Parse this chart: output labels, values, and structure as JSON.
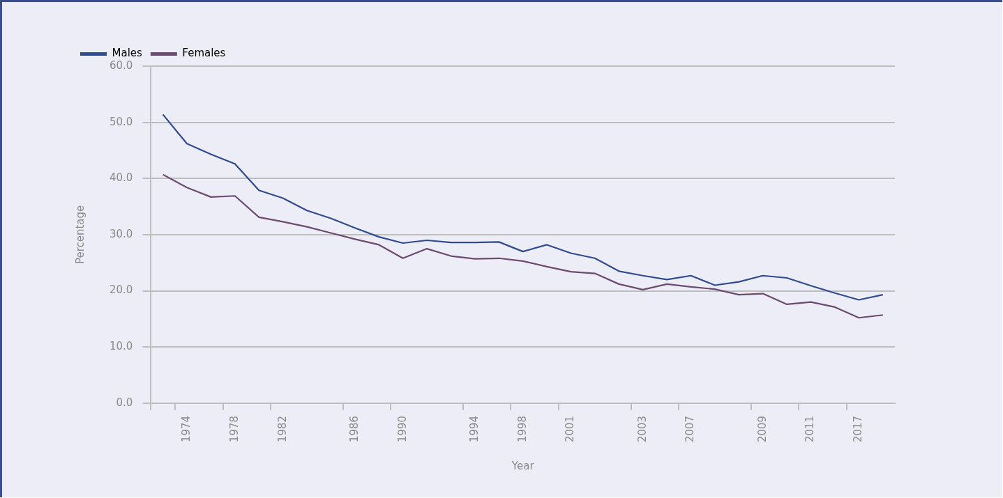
{
  "chart_data": {
    "type": "line",
    "xlabel": "Year",
    "ylabel": "Percentage",
    "categories": [
      null,
      "1974",
      null,
      "1978",
      null,
      "1982",
      null,
      null,
      "1986",
      null,
      "1990",
      null,
      null,
      "1994",
      null,
      "1998",
      null,
      "2001",
      null,
      null,
      "2003",
      null,
      "2007",
      null,
      null,
      "2009",
      null,
      "2011",
      null,
      "2017",
      null
    ],
    "series": [
      {
        "name": "Males",
        "color": "#2f4b93",
        "values": [
          51.4,
          46.2,
          44.3,
          42.6,
          37.9,
          36.5,
          34.3,
          32.9,
          31.2,
          29.6,
          28.5,
          29.0,
          28.6,
          28.6,
          28.7,
          27.0,
          28.2,
          26.7,
          25.8,
          23.5,
          22.7,
          22.0,
          22.7,
          21.0,
          21.6,
          22.7,
          22.3,
          20.9,
          19.6,
          18.4,
          19.3
        ]
      },
      {
        "name": "Females",
        "color": "#6d4a72",
        "values": [
          40.7,
          38.4,
          36.7,
          36.9,
          33.1,
          32.3,
          31.4,
          30.3,
          29.2,
          28.2,
          25.8,
          27.5,
          26.2,
          25.7,
          25.8,
          25.3,
          24.3,
          23.4,
          23.1,
          21.2,
          20.2,
          21.2,
          20.7,
          20.3,
          19.3,
          19.5,
          17.6,
          18.0,
          17.1,
          15.2,
          15.7
        ]
      }
    ],
    "ylim": [
      0,
      60
    ],
    "yticks": [
      {
        "value": 0,
        "label": "0.0"
      },
      {
        "value": 10,
        "label": "10.0"
      },
      {
        "value": 20,
        "label": "20.0"
      },
      {
        "value": 30,
        "label": "30.0"
      },
      {
        "value": 40,
        "label": "40.0"
      },
      {
        "value": 50,
        "label": "50.0"
      },
      {
        "value": 60,
        "label": "60.0"
      }
    ],
    "grid": "y",
    "legend": "top left",
    "marker": "none",
    "line_style": "solid"
  }
}
